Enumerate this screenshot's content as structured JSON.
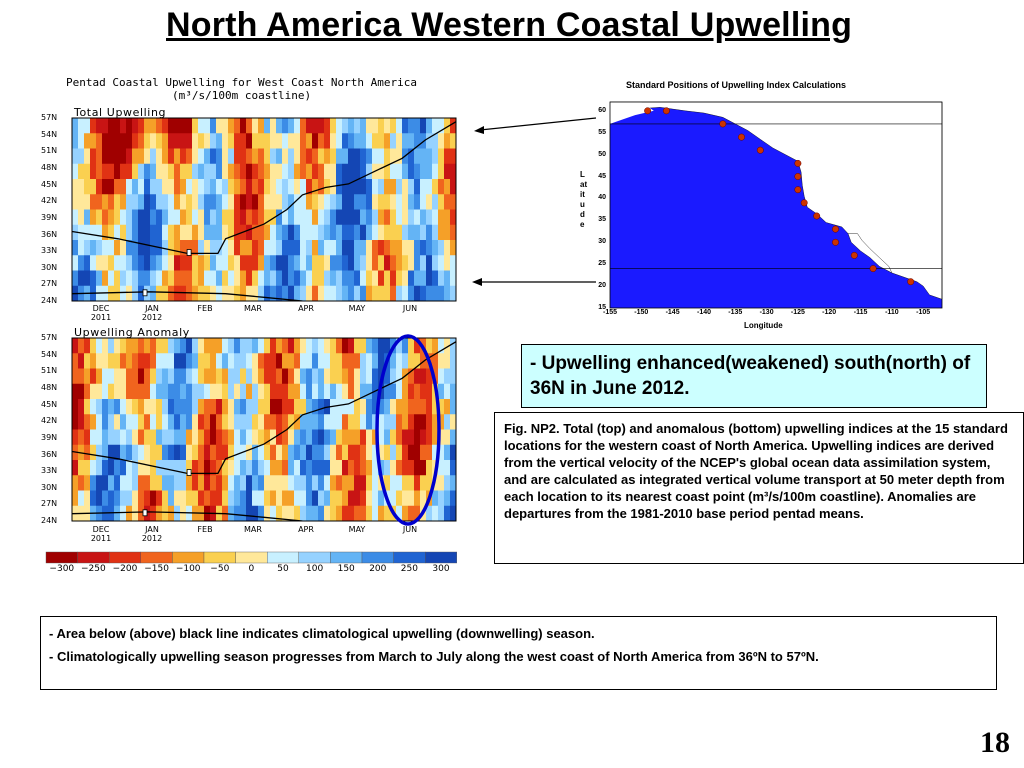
{
  "slide": {
    "title": "North America Western Coastal Upwelling",
    "page_number": "18"
  },
  "figure": {
    "title_line1": "Pentad Coastal Upwelling for West Coast North America",
    "title_line2": "(m³/s/100m coastline)",
    "panel_top_label": "Total Upwelling",
    "panel_bottom_label": "Upwelling Anomaly",
    "colors": {
      "strong_down": "#c80000",
      "mid_down": "#f04b14",
      "weak_down": "#ffe082",
      "neutral": "#fff0a0",
      "weak_up": "#a0e8ff",
      "mid_up": "#4fa6f0",
      "strong_up": "#1450c8",
      "highlight_ellipse": "#0000cc"
    }
  },
  "chart_data": [
    {
      "type": "heatmap",
      "title": "Total Upwelling",
      "y_ticks": [
        "57N",
        "54N",
        "51N",
        "48N",
        "45N",
        "42N",
        "39N",
        "36N",
        "33N",
        "30N",
        "27N",
        "24N"
      ],
      "x_ticks": [
        {
          "month": "DEC",
          "year": "2011"
        },
        {
          "month": "JAN",
          "year": "2012"
        },
        {
          "month": "FEB",
          "year": ""
        },
        {
          "month": "MAR",
          "year": ""
        },
        {
          "month": "APR",
          "year": ""
        },
        {
          "month": "MAY",
          "year": ""
        },
        {
          "month": "JUN",
          "year": ""
        }
      ],
      "colorbar_ticks": [
        "−300",
        "−250",
        "−200",
        "−150",
        "−100",
        "−50",
        "0",
        "50",
        "100",
        "150",
        "200",
        "250",
        "300"
      ],
      "colorbar_colors": [
        "#a00000",
        "#c81414",
        "#e03214",
        "#f0641e",
        "#f5a028",
        "#fad050",
        "#ffe89a",
        "#c8f0ff",
        "#96d2ff",
        "#64b4f5",
        "#3c8ce6",
        "#2064d2",
        "#1446b4"
      ],
      "note": ""
    },
    {
      "type": "heatmap",
      "title": "Upwelling Anomaly",
      "y_ticks": [
        "57N",
        "54N",
        "51N",
        "48N",
        "45N",
        "42N",
        "39N",
        "36N",
        "33N",
        "30N",
        "27N",
        "24N"
      ],
      "x_ticks": [
        {
          "month": "DEC",
          "year": "2011"
        },
        {
          "month": "JAN",
          "year": "2012"
        },
        {
          "month": "FEB",
          "year": ""
        },
        {
          "month": "MAR",
          "year": ""
        },
        {
          "month": "APR",
          "year": ""
        },
        {
          "month": "MAY",
          "year": ""
        },
        {
          "month": "JUN",
          "year": ""
        }
      ]
    }
  ],
  "map": {
    "title": "Standard Positions of Upwelling Index Calculations",
    "y_axis_label": "Latitude",
    "x_axis_label": "Longitude",
    "lat_ticks": [
      "60",
      "55",
      "50",
      "45",
      "40",
      "35",
      "30",
      "25",
      "20",
      "15"
    ],
    "lon_ticks": [
      "-155",
      "-150",
      "-145",
      "-140",
      "-135",
      "-130",
      "-125",
      "-120",
      "-115",
      "-110",
      "-105"
    ],
    "stations": [
      {
        "lat": 60,
        "lon": -146
      },
      {
        "lat": 60,
        "lon": -149
      },
      {
        "lat": 57,
        "lon": -137
      },
      {
        "lat": 54,
        "lon": -134
      },
      {
        "lat": 51,
        "lon": -131
      },
      {
        "lat": 48,
        "lon": -125
      },
      {
        "lat": 45,
        "lon": -125
      },
      {
        "lat": 42,
        "lon": -125
      },
      {
        "lat": 39,
        "lon": -124
      },
      {
        "lat": 36,
        "lon": -122
      },
      {
        "lat": 33,
        "lon": -119
      },
      {
        "lat": 30,
        "lon": -119
      },
      {
        "lat": 27,
        "lon": -116
      },
      {
        "lat": 24,
        "lon": -113
      },
      {
        "lat": 21,
        "lon": -107
      }
    ],
    "colors": {
      "ocean": "#1a1aff",
      "land": "#ffffff",
      "station": "#cc3300"
    }
  },
  "highlight_text": {
    "prefix": "- ",
    "text": "Upwelling enhanced(weakened) south(north) of 36N in June 2012."
  },
  "caption": {
    "text": "Fig. NP2. Total (top) and anomalous (bottom) upwelling indices at the 15 standard locations for the western coast of North America. Upwelling indices are derived from the vertical velocity of the NCEP's global ocean data assimilation system, and are calculated as integrated vertical volume transport at 50 meter depth from each location to its nearest coast point (m³/s/100m coastline). Anomalies are departures from the 1981-2010 base period pentad means."
  },
  "bullets": [
    {
      "prefix": "- ",
      "text": "Area below (above) black line indicates climatological upwelling (downwelling) season."
    },
    {
      "prefix": "- ",
      "text": "Climatologically upwelling season progresses from March to July along the west coast of North America from 36ºN to 57ºN."
    }
  ]
}
